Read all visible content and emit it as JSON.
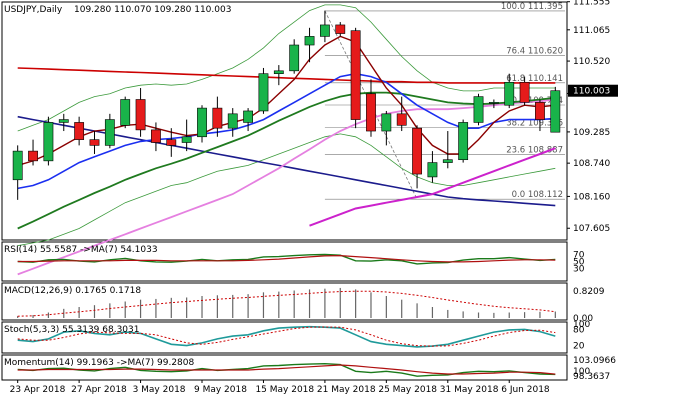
{
  "header": {
    "symbol": "USDJPY,Daily",
    "ohlc": "109.280 110.070 109.280 110.003"
  },
  "colors": {
    "bull": "#19b34a",
    "bear": "#e51b1b",
    "ma_fast": "#8b0000",
    "ma_blue": "#1b2ff0",
    "ma_green": "#1f7a1f",
    "ma_pink": "#e580e0",
    "ma_red": "#cc0000",
    "ma_navy": "#1b1b8c",
    "ma_magenta": "#cc22cc",
    "bb": "#3c9a3c",
    "current_price_box": "#000000"
  },
  "chart_data": [
    {
      "type": "candlestick",
      "title": "USDJPY,Daily",
      "subtitle": "109.280 110.070 109.280 110.003",
      "ylim": [
        107.4,
        111.55
      ],
      "y_ticks": [
        "111.555",
        "111.065",
        "110.520",
        "109.955",
        "109.285",
        "108.740",
        "108.160",
        "107.605"
      ],
      "current_price": "110.003",
      "x_labels": [
        "23 Apr 2018",
        "27 Apr 2018",
        "3 May 2018",
        "9 May 2018",
        "15 May 2018",
        "21 May 2018",
        "25 May 2018",
        "31 May 2018",
        "6 Jun 2018"
      ],
      "x_label_index": [
        0,
        4,
        8,
        12,
        16,
        20,
        24,
        28,
        32
      ],
      "candles": [
        {
          "o": 108.45,
          "h": 109.05,
          "l": 108.1,
          "c": 108.95
        },
        {
          "o": 108.95,
          "h": 109.15,
          "l": 108.7,
          "c": 108.78
        },
        {
          "o": 108.78,
          "h": 109.55,
          "l": 108.7,
          "c": 109.45
        },
        {
          "o": 109.45,
          "h": 109.6,
          "l": 109.3,
          "c": 109.5
        },
        {
          "o": 109.45,
          "h": 109.55,
          "l": 109.05,
          "c": 109.15
        },
        {
          "o": 109.15,
          "h": 109.3,
          "l": 108.9,
          "c": 109.05
        },
        {
          "o": 109.05,
          "h": 109.6,
          "l": 109.0,
          "c": 109.5
        },
        {
          "o": 109.4,
          "h": 109.9,
          "l": 109.35,
          "c": 109.85
        },
        {
          "o": 109.85,
          "h": 110.05,
          "l": 109.2,
          "c": 109.32
        },
        {
          "o": 109.32,
          "h": 109.45,
          "l": 108.95,
          "c": 109.1
        },
        {
          "o": 109.15,
          "h": 109.35,
          "l": 108.85,
          "c": 109.05
        },
        {
          "o": 109.1,
          "h": 109.5,
          "l": 108.95,
          "c": 109.2
        },
        {
          "o": 109.2,
          "h": 109.75,
          "l": 109.1,
          "c": 109.7
        },
        {
          "o": 109.7,
          "h": 109.9,
          "l": 109.2,
          "c": 109.35
        },
        {
          "o": 109.35,
          "h": 109.7,
          "l": 109.2,
          "c": 109.6
        },
        {
          "o": 109.45,
          "h": 109.7,
          "l": 109.3,
          "c": 109.65
        },
        {
          "o": 109.65,
          "h": 110.4,
          "l": 109.6,
          "c": 110.3
        },
        {
          "o": 110.3,
          "h": 110.45,
          "l": 110.1,
          "c": 110.35
        },
        {
          "o": 110.35,
          "h": 110.9,
          "l": 110.3,
          "c": 110.8
        },
        {
          "o": 110.8,
          "h": 111.1,
          "l": 110.5,
          "c": 110.95
        },
        {
          "o": 110.95,
          "h": 111.4,
          "l": 110.85,
          "c": 111.15
        },
        {
          "o": 111.15,
          "h": 111.2,
          "l": 110.95,
          "c": 111.0
        },
        {
          "o": 111.05,
          "h": 111.1,
          "l": 109.35,
          "c": 109.5
        },
        {
          "o": 109.95,
          "h": 110.2,
          "l": 109.2,
          "c": 109.3
        },
        {
          "o": 109.3,
          "h": 109.65,
          "l": 109.05,
          "c": 109.6
        },
        {
          "o": 109.6,
          "h": 109.9,
          "l": 109.3,
          "c": 109.4
        },
        {
          "o": 109.35,
          "h": 109.4,
          "l": 108.3,
          "c": 108.55
        },
        {
          "o": 108.5,
          "h": 108.95,
          "l": 108.4,
          "c": 108.75
        },
        {
          "o": 108.75,
          "h": 109.3,
          "l": 108.65,
          "c": 108.8
        },
        {
          "o": 108.8,
          "h": 109.5,
          "l": 108.75,
          "c": 109.45
        },
        {
          "o": 109.45,
          "h": 109.95,
          "l": 109.4,
          "c": 109.9
        },
        {
          "o": 109.8,
          "h": 109.85,
          "l": 109.7,
          "c": 109.8
        },
        {
          "o": 109.75,
          "h": 110.3,
          "l": 109.7,
          "c": 110.15
        },
        {
          "o": 110.15,
          "h": 110.25,
          "l": 109.75,
          "c": 109.8
        },
        {
          "o": 109.8,
          "h": 109.85,
          "l": 109.3,
          "c": 109.5
        },
        {
          "o": 109.28,
          "h": 110.07,
          "l": 109.28,
          "c": 110.003
        }
      ],
      "fibonacci": [
        {
          "label": "100.0 111.395",
          "value": 111.395
        },
        {
          "label": "76.4 110.620",
          "value": 110.62
        },
        {
          "label": "61.8 110.141",
          "value": 110.141
        },
        {
          "label": "50.0 109.754",
          "value": 109.754
        },
        {
          "label": "38.2 109.366",
          "value": 109.366
        },
        {
          "label": "23.6 108.887",
          "value": 108.887
        },
        {
          "label": "0.0 108.112",
          "value": 108.112
        }
      ],
      "moving_averages": {
        "ma_fast": [
          108.7,
          108.78,
          108.9,
          109.05,
          109.2,
          109.3,
          109.33,
          109.4,
          109.42,
          109.35,
          109.28,
          109.22,
          109.25,
          109.38,
          109.45,
          109.52,
          109.7,
          109.95,
          110.2,
          110.55,
          110.8,
          110.95,
          110.85,
          110.45,
          110.05,
          109.75,
          109.35,
          109.05,
          108.9,
          108.9,
          109.15,
          109.45,
          109.65,
          109.75,
          109.72,
          109.75
        ],
        "ma_blue": [
          108.3,
          108.35,
          108.45,
          108.6,
          108.75,
          108.85,
          108.95,
          109.05,
          109.12,
          109.15,
          109.17,
          109.2,
          109.25,
          109.28,
          109.32,
          109.4,
          109.5,
          109.65,
          109.8,
          109.95,
          110.1,
          110.25,
          110.3,
          110.25,
          110.15,
          109.95,
          109.75,
          109.6,
          109.45,
          109.35,
          109.35,
          109.45,
          109.5,
          109.5,
          109.5,
          109.52
        ],
        "ma_green": [
          107.6,
          107.72,
          107.85,
          107.98,
          108.1,
          108.22,
          108.33,
          108.45,
          108.55,
          108.65,
          108.73,
          108.82,
          108.92,
          109.02,
          109.12,
          109.22,
          109.35,
          109.48,
          109.6,
          109.72,
          109.82,
          109.9,
          109.95,
          109.97,
          109.97,
          109.95,
          109.9,
          109.85,
          109.8,
          109.78,
          109.77,
          109.78,
          109.8,
          109.82,
          109.85,
          109.88
        ],
        "ma_pink": [
          106.8,
          106.9,
          107.0,
          107.1,
          107.2,
          107.3,
          107.4,
          107.5,
          107.6,
          107.7,
          107.8,
          107.9,
          108.0,
          108.1,
          108.2,
          108.35,
          108.5,
          108.65,
          108.82,
          108.98,
          109.15,
          109.3,
          109.42,
          109.52,
          109.6,
          109.65,
          109.68,
          109.68,
          109.68,
          109.7,
          109.72,
          109.75,
          109.78,
          109.8,
          109.82,
          109.85
        ],
        "ma_red": [
          110.4,
          110.39,
          110.38,
          110.37,
          110.36,
          110.35,
          110.34,
          110.33,
          110.32,
          110.31,
          110.3,
          110.29,
          110.28,
          110.27,
          110.26,
          110.25,
          110.24,
          110.23,
          110.22,
          110.21,
          110.2,
          110.19,
          110.18,
          110.17,
          110.16,
          110.16,
          110.15,
          110.15,
          110.14,
          110.14,
          110.14,
          110.14,
          110.14,
          110.14,
          110.14,
          110.14
        ],
        "ma_navy": [
          109.55,
          109.5,
          109.45,
          109.4,
          109.35,
          109.3,
          109.25,
          109.2,
          109.15,
          109.1,
          109.05,
          109.0,
          108.95,
          108.9,
          108.85,
          108.8,
          108.75,
          108.7,
          108.65,
          108.6,
          108.55,
          108.5,
          108.45,
          108.4,
          108.35,
          108.3,
          108.25,
          108.2,
          108.15,
          108.12,
          108.1,
          108.08,
          108.06,
          108.04,
          108.02,
          108.0
        ],
        "ma_magenta": [
          null,
          null,
          null,
          null,
          null,
          null,
          null,
          null,
          null,
          null,
          null,
          null,
          null,
          null,
          null,
          null,
          null,
          null,
          null,
          107.65,
          107.75,
          107.85,
          107.95,
          108.0,
          108.05,
          108.1,
          108.15,
          108.2,
          108.3,
          108.4,
          108.5,
          108.6,
          108.7,
          108.8,
          108.9,
          109.0
        ],
        "bb_upper": [
          109.3,
          109.4,
          109.5,
          109.65,
          109.8,
          109.9,
          109.95,
          110.05,
          110.1,
          110.12,
          110.1,
          110.12,
          110.2,
          110.3,
          110.4,
          110.55,
          110.75,
          111.0,
          111.2,
          111.4,
          111.5,
          111.5,
          111.45,
          111.2,
          110.9,
          110.6,
          110.35,
          110.15,
          110.05,
          110.0,
          110.0,
          110.05,
          110.05,
          110.05,
          110.05,
          110.05
        ],
        "bb_lower": [
          107.3,
          107.35,
          107.4,
          107.5,
          107.6,
          107.75,
          107.9,
          108.05,
          108.15,
          108.25,
          108.35,
          108.4,
          108.5,
          108.6,
          108.65,
          108.7,
          108.8,
          108.9,
          109.0,
          109.1,
          109.2,
          109.25,
          109.2,
          109.05,
          108.85,
          108.65,
          108.5,
          108.4,
          108.35,
          108.35,
          108.4,
          108.45,
          108.5,
          108.55,
          108.6,
          108.65
        ]
      },
      "trendline": {
        "from": [
          20,
          111.395
        ],
        "to": [
          26,
          108.112
        ]
      }
    },
    {
      "type": "line",
      "name": "rsi",
      "title": "RSI(14) 55.5587 ->MA(7) 54.1033",
      "ylim": [
        0,
        100
      ],
      "y_ticks": [
        "70",
        "50",
        "30"
      ],
      "series": [
        {
          "name": "RSI(14)",
          "values": [
            50,
            48,
            55,
            56,
            51,
            49,
            55,
            59,
            52,
            49,
            48,
            51,
            56,
            52,
            55,
            56,
            63,
            64,
            67,
            69,
            70,
            68,
            52,
            51,
            55,
            52,
            43,
            46,
            47,
            54,
            58,
            58,
            61,
            57,
            53,
            56
          ]
        },
        {
          "name": "MA(7)",
          "values": [
            50,
            50,
            51,
            52,
            52,
            52,
            52,
            53,
            53,
            53,
            52,
            52,
            52,
            52,
            52,
            53,
            55,
            57,
            60,
            63,
            66,
            67,
            64,
            61,
            58,
            55,
            52,
            50,
            49,
            49,
            50,
            52,
            54,
            55,
            55,
            54
          ]
        }
      ]
    },
    {
      "type": "bar",
      "name": "macd",
      "title": "MACD(12,26,9) 0.1765 0.1718",
      "y_ticks": [
        "0.8209",
        "0.00"
      ],
      "values": [
        0.05,
        0.08,
        0.15,
        0.25,
        0.3,
        0.35,
        0.4,
        0.45,
        0.5,
        0.52,
        0.55,
        0.56,
        0.6,
        0.62,
        0.63,
        0.65,
        0.7,
        0.72,
        0.75,
        0.78,
        0.8,
        0.82,
        0.78,
        0.7,
        0.6,
        0.5,
        0.4,
        0.3,
        0.22,
        0.18,
        0.15,
        0.14,
        0.15,
        0.16,
        0.17,
        0.1765
      ],
      "signal": [
        0.05,
        0.06,
        0.09,
        0.13,
        0.17,
        0.21,
        0.26,
        0.3,
        0.34,
        0.38,
        0.42,
        0.45,
        0.48,
        0.51,
        0.54,
        0.56,
        0.59,
        0.62,
        0.64,
        0.67,
        0.7,
        0.72,
        0.73,
        0.73,
        0.71,
        0.67,
        0.62,
        0.56,
        0.49,
        0.43,
        0.37,
        0.32,
        0.28,
        0.25,
        0.22,
        0.1718
      ]
    },
    {
      "type": "line",
      "name": "stochastic",
      "title": "Stoch(5,3,3) 55.3139 68.3031",
      "ylim": [
        0,
        100
      ],
      "y_ticks": [
        "100",
        "80",
        "20"
      ],
      "series": [
        {
          "name": "%K",
          "values": [
            40,
            35,
            45,
            70,
            75,
            65,
            60,
            70,
            65,
            45,
            25,
            20,
            30,
            45,
            55,
            60,
            75,
            85,
            88,
            90,
            88,
            85,
            60,
            35,
            25,
            20,
            15,
            18,
            25,
            40,
            55,
            70,
            78,
            80,
            72,
            55
          ]
        },
        {
          "name": "%D",
          "values": [
            45,
            40,
            40,
            50,
            63,
            70,
            67,
            65,
            65,
            60,
            45,
            30,
            25,
            32,
            43,
            53,
            63,
            73,
            83,
            88,
            89,
            88,
            78,
            60,
            40,
            27,
            20,
            18,
            19,
            28,
            40,
            55,
            68,
            76,
            77,
            68
          ]
        }
      ]
    },
    {
      "type": "line",
      "name": "momentum",
      "title": "Momentum(14) 99.1963 ->MA(7) 99.2808",
      "y_ticks": [
        "103.0966",
        "100",
        "98.3637"
      ],
      "series": [
        {
          "name": "Momentum(14)",
          "values": [
            100.3,
            100.1,
            100.5,
            100.6,
            100.2,
            100.0,
            100.5,
            100.8,
            100.1,
            99.9,
            99.8,
            100.0,
            100.5,
            100.1,
            100.3,
            100.5,
            101.1,
            101.2,
            101.4,
            101.5,
            101.6,
            101.4,
            99.9,
            99.6,
            99.9,
            99.5,
            98.8,
            99.0,
            99.1,
            99.6,
            99.9,
            99.8,
            100.0,
            99.6,
            99.3,
            99.2
          ]
        },
        {
          "name": "MA(7)",
          "values": [
            100.2,
            100.2,
            100.3,
            100.3,
            100.3,
            100.3,
            100.3,
            100.4,
            100.4,
            100.3,
            100.2,
            100.2,
            100.2,
            100.2,
            100.2,
            100.2,
            100.4,
            100.5,
            100.7,
            100.9,
            101.1,
            101.3,
            101.1,
            100.8,
            100.5,
            100.2,
            99.8,
            99.5,
            99.3,
            99.3,
            99.4,
            99.5,
            99.7,
            99.7,
            99.6,
            99.28
          ]
        }
      ]
    }
  ]
}
